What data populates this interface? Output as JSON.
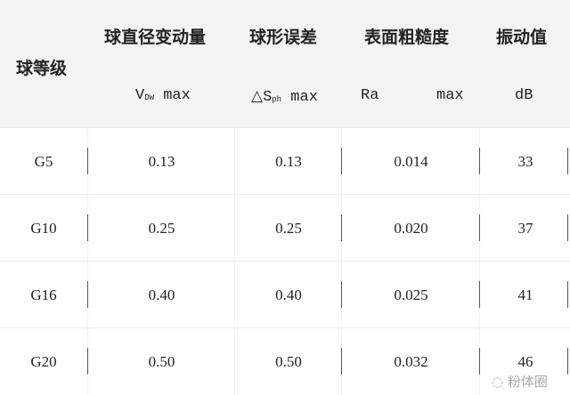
{
  "header": {
    "grade": "球等级",
    "col1": {
      "title": "球直径变动量",
      "sym": "V",
      "sub": "DW",
      "unit": " max"
    },
    "col2": {
      "title": "球形误差",
      "sym": "△S",
      "sub": "ph",
      "unit": " max"
    },
    "col3": {
      "title": "表面粗糙度",
      "sym": "Ra",
      "unit": "max"
    },
    "col4": {
      "title": "振动值",
      "unit": "dB"
    }
  },
  "rows": [
    [
      "G5",
      "0.13",
      "0.13",
      "0.014",
      "33"
    ],
    [
      "G10",
      "0.25",
      "0.25",
      "0.020",
      "37"
    ],
    [
      "G16",
      "0.40",
      "0.40",
      "0.025",
      "41"
    ],
    [
      "G20",
      "0.50",
      "0.50",
      "0.032",
      "46"
    ]
  ],
  "watermark": "粉体圈"
}
